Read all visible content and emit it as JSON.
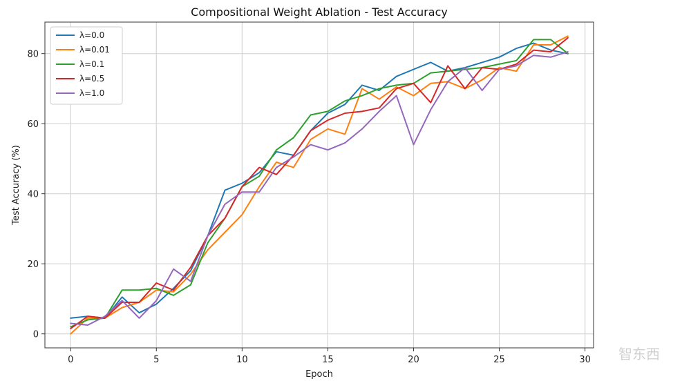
{
  "chart_data": {
    "type": "line",
    "title": "Compositional Weight Ablation - Test Accuracy",
    "xlabel": "Epoch",
    "ylabel": "Test Accuracy (%)",
    "xlim": [
      -1.5,
      30.5
    ],
    "ylim": [
      -4,
      89
    ],
    "xticks": [
      0,
      5,
      10,
      15,
      20,
      25,
      30
    ],
    "yticks": [
      0,
      20,
      40,
      60,
      80
    ],
    "grid": true,
    "legend_position": "top-left",
    "x": [
      0,
      1,
      2,
      3,
      4,
      5,
      6,
      7,
      8,
      9,
      10,
      11,
      12,
      13,
      14,
      15,
      16,
      17,
      18,
      19,
      20,
      21,
      22,
      23,
      24,
      25,
      26,
      27,
      28,
      29
    ],
    "series": [
      {
        "name": "λ=0.0",
        "color": "#1f77b4",
        "values": [
          4.5,
          5,
          4.5,
          10.5,
          6,
          8.5,
          13,
          18,
          28,
          41,
          43,
          46,
          52,
          51,
          58,
          63,
          65.5,
          71,
          69.5,
          73.5,
          75.5,
          77.5,
          75,
          76,
          77.5,
          79,
          81.5,
          83,
          81,
          80
        ]
      },
      {
        "name": "λ=0.01",
        "color": "#ff7f0e",
        "values": [
          0,
          4.5,
          4.5,
          7.5,
          9,
          12.5,
          12,
          17,
          24,
          29,
          34,
          42,
          49,
          47.5,
          55.5,
          58.5,
          57,
          70,
          67,
          70.5,
          68,
          71.5,
          72,
          70,
          72.5,
          76,
          75,
          82.5,
          82.5,
          85
        ]
      },
      {
        "name": "λ=0.1",
        "color": "#2ca02c",
        "values": [
          2,
          4,
          4.5,
          12.5,
          12.5,
          13,
          11,
          14,
          26,
          33,
          42,
          45,
          52.5,
          56,
          62.5,
          63.5,
          66.5,
          68,
          70,
          71,
          71.5,
          74.5,
          75,
          75.5,
          76,
          77,
          78,
          84,
          84,
          80
        ]
      },
      {
        "name": "λ=0.5",
        "color": "#d62728",
        "values": [
          1.5,
          5,
          4.5,
          9,
          9,
          14.5,
          12.5,
          19,
          28,
          33,
          42,
          47.5,
          45.5,
          51,
          58,
          61,
          63,
          63.5,
          64.5,
          70,
          71.5,
          66,
          76.5,
          70,
          76,
          75.5,
          77,
          81,
          80.5,
          84.5
        ]
      },
      {
        "name": "λ=1.0",
        "color": "#9467bd",
        "values": [
          3,
          2.5,
          5,
          9.5,
          4.5,
          9.5,
          18.5,
          15,
          28,
          37,
          40.5,
          40.5,
          47.5,
          50.5,
          54,
          52.5,
          54.5,
          58.5,
          63.5,
          68,
          54,
          64,
          72,
          76,
          69.5,
          75.5,
          76.5,
          79.5,
          79,
          80.5
        ]
      }
    ]
  },
  "watermark": "智东西"
}
